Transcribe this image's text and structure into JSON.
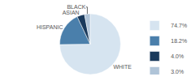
{
  "chart_data": {
    "type": "pie",
    "categories": [
      "WHITE",
      "HISPANIC",
      "ASIAN",
      "BLACK"
    ],
    "values": [
      74.7,
      18.2,
      4.0,
      3.0
    ],
    "value_labels": [
      "74.7%",
      "18.2%",
      "4.0%",
      "3.0%"
    ],
    "colors": [
      "#d6e4f0",
      "#4a7fab",
      "#1a3a5c",
      "#b0c4d8"
    ],
    "legend": "right"
  }
}
